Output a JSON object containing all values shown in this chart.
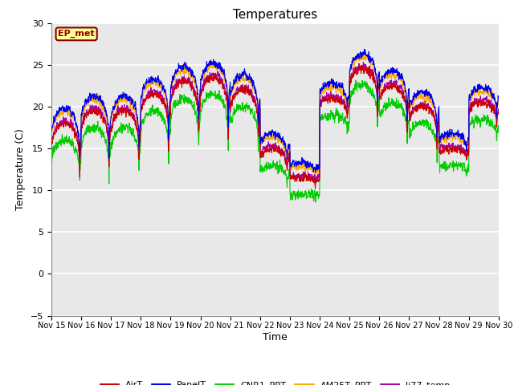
{
  "title": "Temperatures",
  "xlabel": "Time",
  "ylabel": "Temperature (C)",
  "ylim": [
    -5,
    30
  ],
  "annotation_text": "EP_met",
  "annotation_color": "#8B0000",
  "annotation_bg": "#FFFF99",
  "plot_bg_color": "#E8E8E8",
  "grid_color": "#FFFFFF",
  "series_colors": {
    "AirT": "#CC0000",
    "PanelT": "#0000EE",
    "CNR1_PRT": "#00CC00",
    "AM25T_PRT": "#FFAA00",
    "li77_temp": "#AA00AA"
  },
  "x_tick_labels": [
    "Nov 15",
    "Nov 16",
    "Nov 17",
    "Nov 18",
    "Nov 19",
    "Nov 20",
    "Nov 21",
    "Nov 22",
    "Nov 23",
    "Nov 24",
    "Nov 25",
    "Nov 26",
    "Nov 27",
    "Nov 28",
    "Nov 29",
    "Nov 30"
  ],
  "yticks": [
    -5,
    0,
    5,
    10,
    15,
    20,
    25,
    30
  ],
  "num_days": 15,
  "points_per_day": 144
}
